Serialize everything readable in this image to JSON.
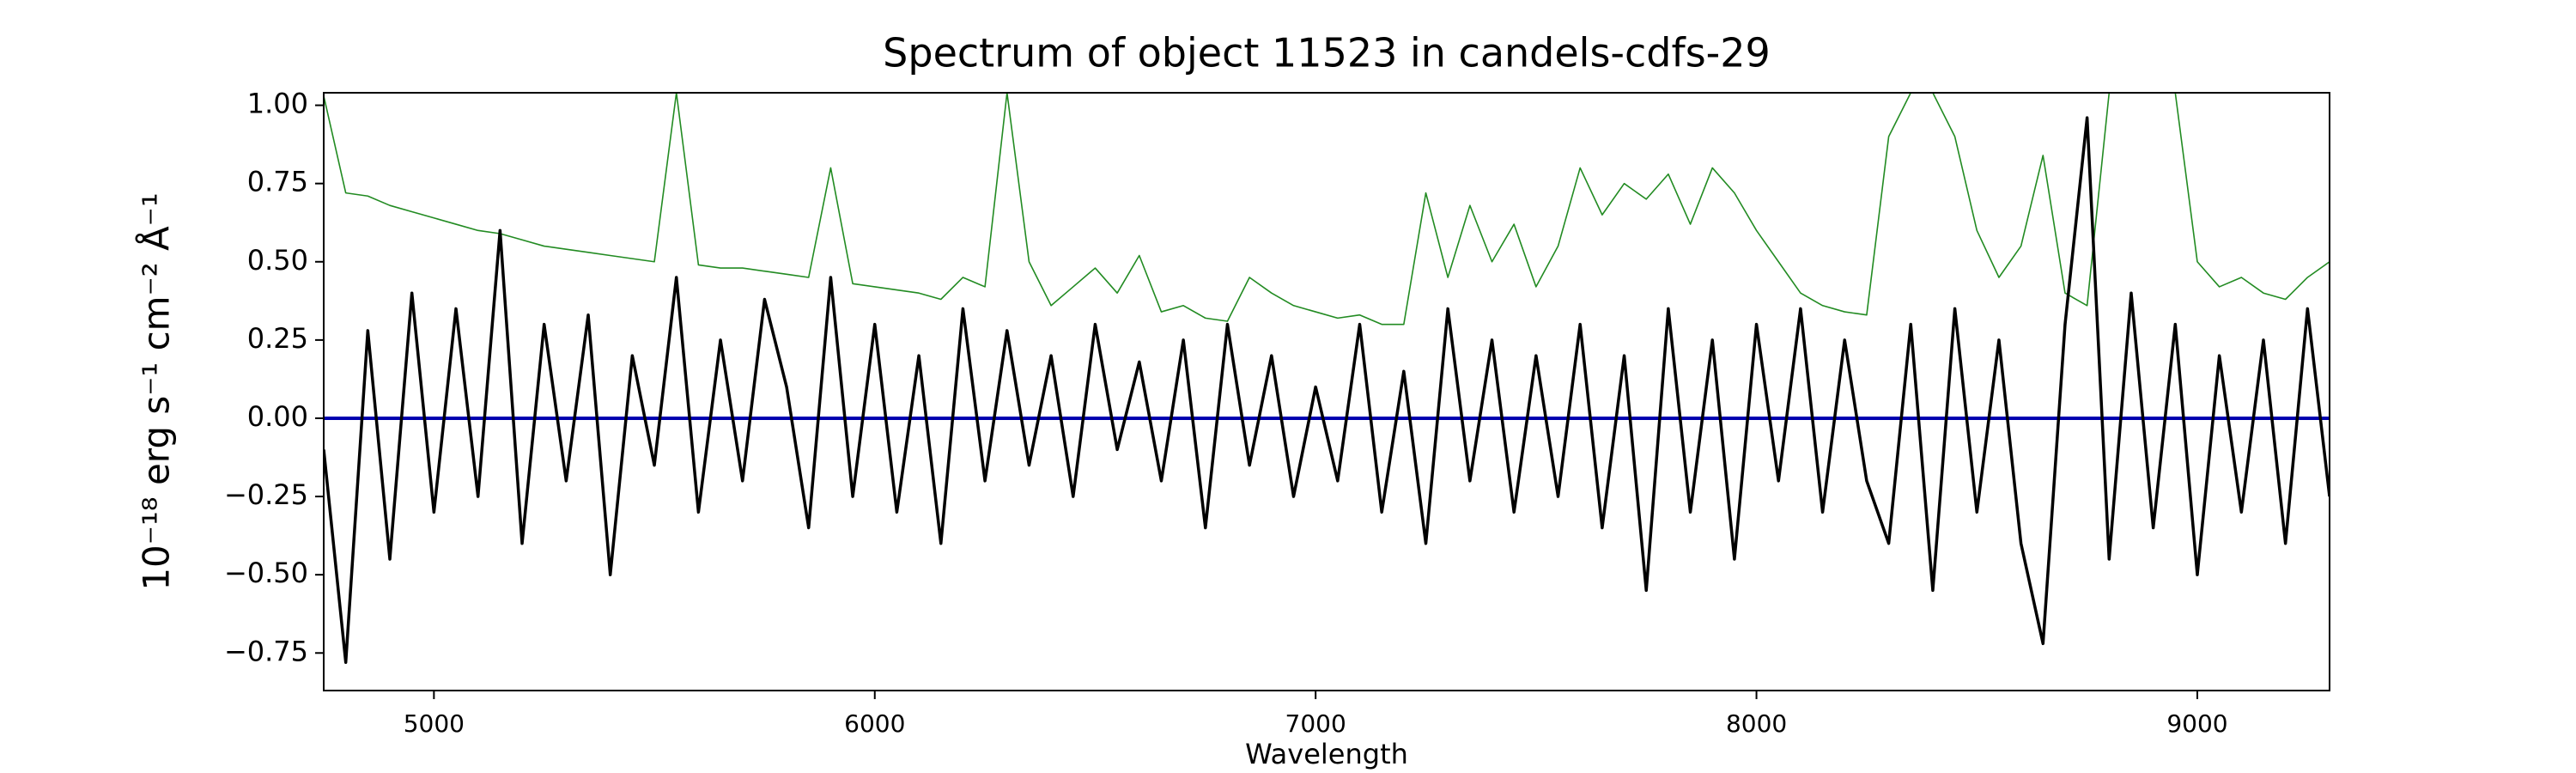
{
  "chart_data": {
    "type": "line",
    "title": "Spectrum of object 11523 in candels-cdfs-29",
    "xlabel": "Wavelength",
    "ylabel": "10⁻¹⁸ erg s⁻¹ cm⁻² Å⁻¹",
    "xlim": [
      4750,
      9300
    ],
    "ylim": [
      -0.87,
      1.04
    ],
    "xticks": [
      5000,
      6000,
      7000,
      8000,
      9000
    ],
    "yticks": [
      {
        "value": -0.75,
        "label": "−0.75"
      },
      {
        "value": -0.5,
        "label": "−0.50"
      },
      {
        "value": -0.25,
        "label": "−0.25"
      },
      {
        "value": 0,
        "label": "0.00"
      },
      {
        "value": 0.25,
        "label": "0.25"
      },
      {
        "value": 0.5,
        "label": "0.50"
      },
      {
        "value": 0.75,
        "label": "0.75"
      },
      {
        "value": 1,
        "label": "1.00"
      }
    ],
    "hlines": [
      {
        "value": 0,
        "color": "#0000b0"
      }
    ],
    "x": [
      4750,
      4800,
      4850,
      4900,
      4950,
      5000,
      5050,
      5100,
      5150,
      5200,
      5250,
      5300,
      5350,
      5400,
      5450,
      5500,
      5550,
      5600,
      5650,
      5700,
      5750,
      5800,
      5850,
      5900,
      5950,
      6000,
      6050,
      6100,
      6150,
      6200,
      6250,
      6300,
      6350,
      6400,
      6450,
      6500,
      6550,
      6600,
      6650,
      6700,
      6750,
      6800,
      6850,
      6900,
      6950,
      7000,
      7050,
      7100,
      7150,
      7200,
      7250,
      7300,
      7350,
      7400,
      7450,
      7500,
      7550,
      7600,
      7650,
      7700,
      7750,
      7800,
      7850,
      7900,
      7950,
      8000,
      8050,
      8100,
      8150,
      8200,
      8250,
      8300,
      8350,
      8400,
      8450,
      8500,
      8550,
      8600,
      8650,
      8700,
      8750,
      8800,
      8850,
      8900,
      8950,
      9000,
      9050,
      9100,
      9150,
      9200,
      9250,
      9300
    ],
    "series": [
      {
        "color": "#228b22",
        "width": 1.6,
        "values": [
          1.03,
          0.72,
          0.71,
          0.68,
          0.66,
          0.64,
          0.62,
          0.6,
          0.59,
          0.57,
          0.55,
          0.54,
          0.53,
          0.52,
          0.51,
          0.5,
          1.04,
          0.49,
          0.48,
          0.48,
          0.47,
          0.46,
          0.45,
          0.8,
          0.43,
          0.42,
          0.41,
          0.4,
          0.38,
          0.45,
          0.42,
          1.04,
          0.5,
          0.36,
          0.42,
          0.48,
          0.4,
          0.52,
          0.34,
          0.36,
          0.32,
          0.31,
          0.45,
          0.4,
          0.36,
          0.34,
          0.32,
          0.33,
          0.3,
          0.3,
          0.72,
          0.45,
          0.68,
          0.5,
          0.62,
          0.42,
          0.55,
          0.8,
          0.65,
          0.75,
          0.7,
          0.78,
          0.62,
          0.8,
          0.72,
          0.6,
          0.5,
          0.4,
          0.36,
          0.34,
          0.33,
          0.9,
          1.04,
          1.04,
          0.9,
          0.6,
          0.45,
          0.55,
          0.84,
          0.4,
          0.36,
          1.04,
          1.04,
          1.04,
          1.04,
          0.5,
          0.42,
          0.45,
          0.4,
          0.38,
          0.45,
          0.5
        ]
      },
      {
        "color": "#000000",
        "width": 3.5,
        "values": [
          -0.1,
          -0.78,
          0.28,
          -0.45,
          0.4,
          -0.3,
          0.35,
          -0.25,
          0.6,
          -0.4,
          0.3,
          -0.2,
          0.33,
          -0.5,
          0.2,
          -0.15,
          0.45,
          -0.3,
          0.25,
          -0.2,
          0.38,
          0.1,
          -0.35,
          0.45,
          -0.25,
          0.3,
          -0.3,
          0.2,
          -0.4,
          0.35,
          -0.2,
          0.28,
          -0.15,
          0.2,
          -0.25,
          0.3,
          -0.1,
          0.18,
          -0.2,
          0.25,
          -0.35,
          0.3,
          -0.15,
          0.2,
          -0.25,
          0.1,
          -0.2,
          0.3,
          -0.3,
          0.15,
          -0.4,
          0.35,
          -0.2,
          0.25,
          -0.3,
          0.2,
          -0.25,
          0.3,
          -0.35,
          0.2,
          -0.55,
          0.35,
          -0.3,
          0.25,
          -0.45,
          0.3,
          -0.2,
          0.35,
          -0.3,
          0.25,
          -0.2,
          -0.4,
          0.3,
          -0.55,
          0.35,
          -0.3,
          0.25,
          -0.4,
          -0.72,
          0.3,
          0.96,
          -0.45,
          0.4,
          -0.35,
          0.3,
          -0.5,
          0.2,
          -0.3,
          0.25,
          -0.4,
          0.35,
          -0.25
        ]
      }
    ]
  }
}
